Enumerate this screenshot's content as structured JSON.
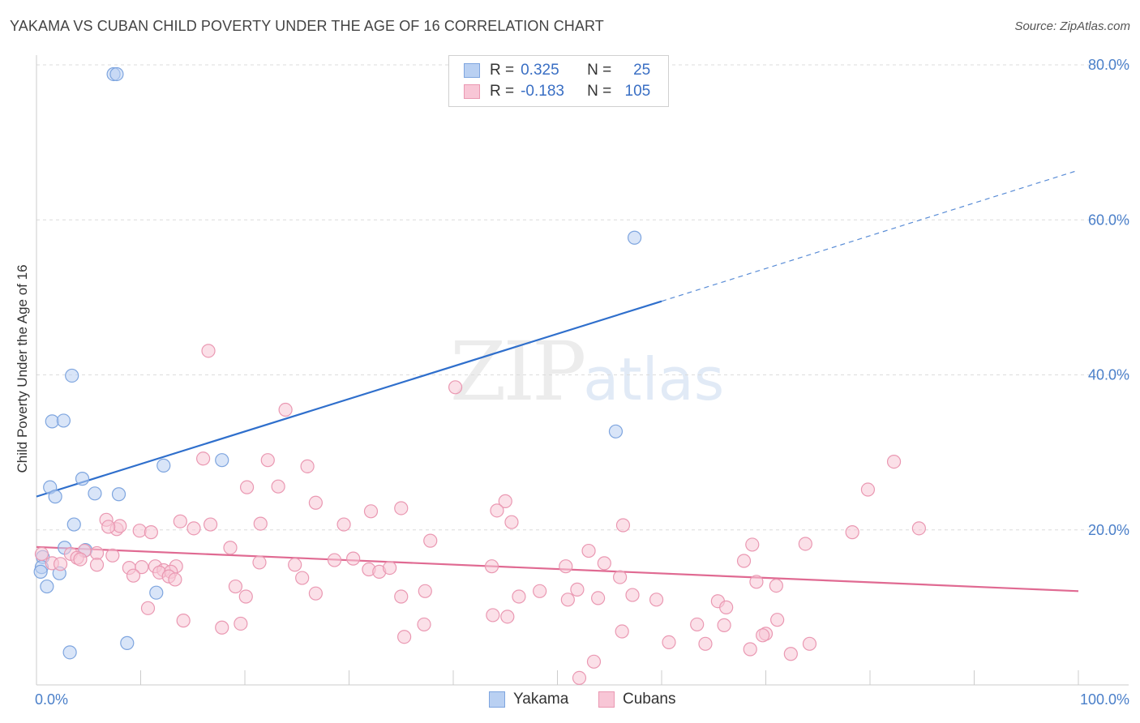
{
  "header": {
    "title": "YAKAMA VS CUBAN CHILD POVERTY UNDER THE AGE OF 16 CORRELATION CHART",
    "source": "Source: ZipAtlas.com"
  },
  "watermark": {
    "zip": "ZIP",
    "atlas": "atlas"
  },
  "legend": {
    "rows": [
      {
        "r_label": "R =",
        "r_value": "0.325",
        "n_label": "N =",
        "n_value": "25",
        "fill": "#b9d0f2",
        "stroke": "#7ea5df"
      },
      {
        "r_label": "R =",
        "r_value": "-0.183",
        "n_label": "N =",
        "n_value": "105",
        "fill": "#f8c6d6",
        "stroke": "#ea98b2"
      }
    ]
  },
  "bottom_legend": [
    {
      "label": "Yakama",
      "fill": "#b9d0f2",
      "stroke": "#7ea5df"
    },
    {
      "label": "Cubans",
      "fill": "#f8c6d6",
      "stroke": "#ea98b2"
    }
  ],
  "chart_data": {
    "type": "scatter",
    "title": "YAKAMA VS CUBAN CHILD POVERTY UNDER THE AGE OF 16 CORRELATION CHART",
    "xlabel": "",
    "ylabel": "Child Poverty Under the Age of 16",
    "xlim": [
      0,
      100
    ],
    "ylim": [
      0,
      80
    ],
    "x_tick_labels": [
      {
        "value": 0,
        "label": "0.0%"
      },
      {
        "value": 100,
        "label": "100.0%"
      }
    ],
    "y_tick_labels": [
      {
        "value": 20,
        "label": "20.0%"
      },
      {
        "value": 40,
        "label": "40.0%"
      },
      {
        "value": 60,
        "label": "60.0%"
      },
      {
        "value": 80,
        "label": "80.0%"
      }
    ],
    "grid": true,
    "series": [
      {
        "name": "Yakama",
        "color": "#7ea5df",
        "fill": "#b9d0f2",
        "line_color": "#2f6fcc",
        "trend": {
          "x0": 0,
          "y0": 24.3,
          "x1": 60,
          "y1": 49.5,
          "dash_to_x": 100,
          "dash_to_y": 66.4
        },
        "points": [
          [
            7.4,
            78.8
          ],
          [
            7.7,
            78.8
          ],
          [
            57.4,
            57.7
          ],
          [
            3.4,
            39.9
          ],
          [
            1.5,
            34.0
          ],
          [
            2.6,
            34.1
          ],
          [
            55.6,
            32.7
          ],
          [
            12.2,
            28.3
          ],
          [
            17.8,
            29.0
          ],
          [
            4.4,
            26.6
          ],
          [
            1.3,
            25.5
          ],
          [
            1.8,
            24.3
          ],
          [
            5.6,
            24.7
          ],
          [
            7.9,
            24.6
          ],
          [
            3.6,
            20.7
          ],
          [
            2.7,
            17.7
          ],
          [
            4.7,
            17.4
          ],
          [
            0.6,
            16.5
          ],
          [
            0.5,
            15.2
          ],
          [
            0.4,
            14.6
          ],
          [
            1.0,
            12.7
          ],
          [
            2.2,
            14.4
          ],
          [
            11.5,
            11.9
          ],
          [
            8.7,
            5.4
          ],
          [
            3.2,
            4.2
          ]
        ]
      },
      {
        "name": "Cubans",
        "color": "#ea98b2",
        "fill": "#f8c6d6",
        "line_color": "#e06a92",
        "trend": {
          "x0": 0,
          "y0": 17.8,
          "x1": 100,
          "y1": 12.1
        },
        "points": [
          [
            16.5,
            43.1
          ],
          [
            40.2,
            38.4
          ],
          [
            23.9,
            35.5
          ],
          [
            16.0,
            29.2
          ],
          [
            22.2,
            29.0
          ],
          [
            26.0,
            28.2
          ],
          [
            82.3,
            28.8
          ],
          [
            20.2,
            25.5
          ],
          [
            23.2,
            25.6
          ],
          [
            79.8,
            25.2
          ],
          [
            26.8,
            23.5
          ],
          [
            32.1,
            22.4
          ],
          [
            45.0,
            23.7
          ],
          [
            44.2,
            22.5
          ],
          [
            13.8,
            21.1
          ],
          [
            21.5,
            20.8
          ],
          [
            29.5,
            20.7
          ],
          [
            35.0,
            22.8
          ],
          [
            84.7,
            20.2
          ],
          [
            56.3,
            20.6
          ],
          [
            6.7,
            21.3
          ],
          [
            7.7,
            20.1
          ],
          [
            8.0,
            20.5
          ],
          [
            9.9,
            19.9
          ],
          [
            11.0,
            19.7
          ],
          [
            15.1,
            20.2
          ],
          [
            16.7,
            20.7
          ],
          [
            6.9,
            20.4
          ],
          [
            45.6,
            21.0
          ],
          [
            37.8,
            18.6
          ],
          [
            54.5,
            15.7
          ],
          [
            68.7,
            18.1
          ],
          [
            78.3,
            19.7
          ],
          [
            53.0,
            17.3
          ],
          [
            73.8,
            18.2
          ],
          [
            3.3,
            16.9
          ],
          [
            4.6,
            17.3
          ],
          [
            5.8,
            17.0
          ],
          [
            7.3,
            16.7
          ],
          [
            0.5,
            16.9
          ],
          [
            1.5,
            15.7
          ],
          [
            2.3,
            15.6
          ],
          [
            3.9,
            16.4
          ],
          [
            4.2,
            16.2
          ],
          [
            5.8,
            15.5
          ],
          [
            8.9,
            15.1
          ],
          [
            10.1,
            15.2
          ],
          [
            11.4,
            15.3
          ],
          [
            12.2,
            14.8
          ],
          [
            13.4,
            15.3
          ],
          [
            11.8,
            14.5
          ],
          [
            12.9,
            14.6
          ],
          [
            9.3,
            14.1
          ],
          [
            12.7,
            14.0
          ],
          [
            18.6,
            17.7
          ],
          [
            21.4,
            15.8
          ],
          [
            24.8,
            15.5
          ],
          [
            25.5,
            13.8
          ],
          [
            28.6,
            16.1
          ],
          [
            30.4,
            16.3
          ],
          [
            31.9,
            14.9
          ],
          [
            32.9,
            14.6
          ],
          [
            33.9,
            15.1
          ],
          [
            43.7,
            15.3
          ],
          [
            50.8,
            15.3
          ],
          [
            67.9,
            16.0
          ],
          [
            56.0,
            13.9
          ],
          [
            69.1,
            13.3
          ],
          [
            13.3,
            13.6
          ],
          [
            19.1,
            12.7
          ],
          [
            20.1,
            11.4
          ],
          [
            26.8,
            11.8
          ],
          [
            35.0,
            11.4
          ],
          [
            37.3,
            12.1
          ],
          [
            57.2,
            11.6
          ],
          [
            59.5,
            11.0
          ],
          [
            65.4,
            10.8
          ],
          [
            66.2,
            10.0
          ],
          [
            71.0,
            12.8
          ],
          [
            46.3,
            11.4
          ],
          [
            48.3,
            12.1
          ],
          [
            51.0,
            11.0
          ],
          [
            51.9,
            12.3
          ],
          [
            53.9,
            11.2
          ],
          [
            10.7,
            9.9
          ],
          [
            14.1,
            8.3
          ],
          [
            17.8,
            7.4
          ],
          [
            19.6,
            7.9
          ],
          [
            35.3,
            6.2
          ],
          [
            37.2,
            7.8
          ],
          [
            43.8,
            9.0
          ],
          [
            45.2,
            8.8
          ],
          [
            63.4,
            7.8
          ],
          [
            66.0,
            7.7
          ],
          [
            70.0,
            6.6
          ],
          [
            71.1,
            8.4
          ],
          [
            56.2,
            6.9
          ],
          [
            60.7,
            5.5
          ],
          [
            64.2,
            5.3
          ],
          [
            69.7,
            6.4
          ],
          [
            74.2,
            5.3
          ],
          [
            68.5,
            4.6
          ],
          [
            72.4,
            4.0
          ],
          [
            53.5,
            3.0
          ],
          [
            52.1,
            0.9
          ]
        ]
      }
    ]
  }
}
